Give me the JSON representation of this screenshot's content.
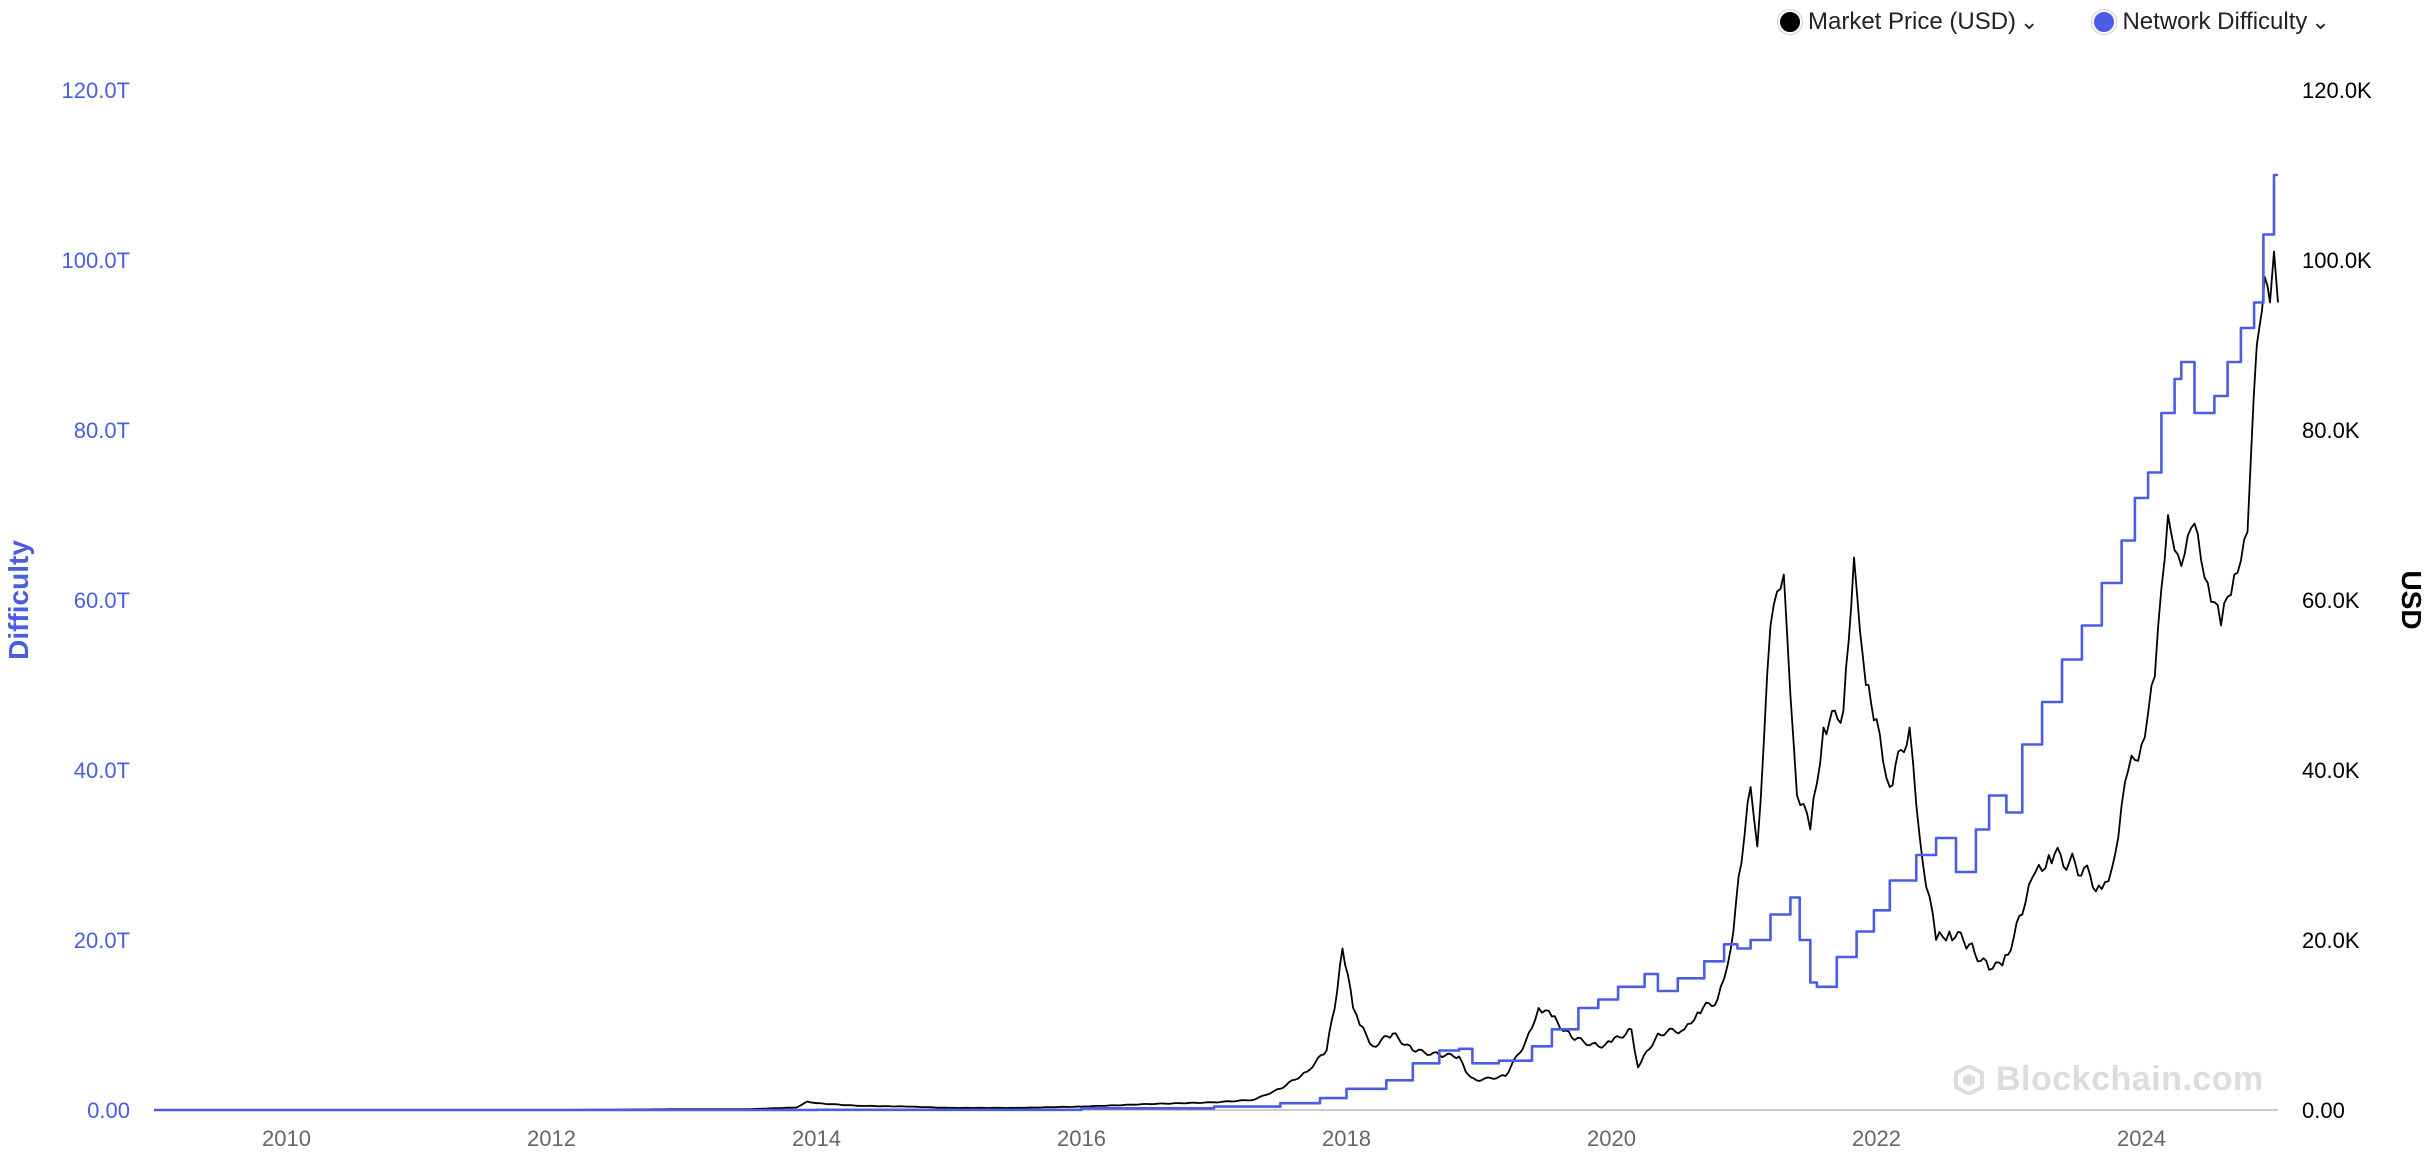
{
  "legend": {
    "items": [
      {
        "label": "Market Price (USD)",
        "color": "#000000",
        "icon": "chevron-down-icon"
      },
      {
        "label": "Network Difficulty",
        "color": "#4a5de3",
        "icon": "chevron-down-icon"
      }
    ]
  },
  "watermark": {
    "text": "Blockchain.com",
    "icon": "blockchain-logo-icon"
  },
  "chart_data": {
    "type": "line",
    "title": "",
    "xlabel": "",
    "x_ticks": [
      "2010",
      "2012",
      "2014",
      "2016",
      "2018",
      "2020",
      "2022",
      "2024"
    ],
    "xlim": [
      2009.0,
      2025.03
    ],
    "grid": false,
    "legend_position": "top-right",
    "y_left": {
      "label": "Difficulty",
      "color": "#4a5de3",
      "ylim": [
        0,
        120
      ],
      "unit_scale": "trillions",
      "tick_labels": [
        "0.00",
        "20.0T",
        "40.0T",
        "60.0T",
        "80.0T",
        "100.0T",
        "120.0T"
      ]
    },
    "y_right": {
      "label": "USD",
      "color": "#000000",
      "ylim": [
        0,
        120
      ],
      "unit_scale": "thousands",
      "tick_labels": [
        "0.00",
        "20.0K",
        "40.0K",
        "60.0K",
        "80.0K",
        "100.0K",
        "120.0K"
      ]
    },
    "series": [
      {
        "name": "Market Price (USD)",
        "axis": "right",
        "color": "#000000",
        "points": [
          [
            2009.0,
            0
          ],
          [
            2012.0,
            0.005
          ],
          [
            2013.0,
            0.1
          ],
          [
            2013.5,
            0.1
          ],
          [
            2013.85,
            0.3
          ],
          [
            2013.93,
            1.0
          ],
          [
            2014.0,
            0.8
          ],
          [
            2014.3,
            0.5
          ],
          [
            2014.7,
            0.4
          ],
          [
            2015.0,
            0.25
          ],
          [
            2015.5,
            0.25
          ],
          [
            2016.0,
            0.4
          ],
          [
            2016.5,
            0.7
          ],
          [
            2017.0,
            0.9
          ],
          [
            2017.3,
            1.2
          ],
          [
            2017.5,
            2.5
          ],
          [
            2017.7,
            4.5
          ],
          [
            2017.85,
            7.0
          ],
          [
            2017.93,
            14.0
          ],
          [
            2017.97,
            19.0
          ],
          [
            2018.05,
            12.0
          ],
          [
            2018.1,
            10.0
          ],
          [
            2018.2,
            7.5
          ],
          [
            2018.35,
            9.0
          ],
          [
            2018.5,
            7.0
          ],
          [
            2018.7,
            6.5
          ],
          [
            2018.85,
            6.3
          ],
          [
            2018.9,
            4.5
          ],
          [
            2018.98,
            3.5
          ],
          [
            2019.2,
            4.0
          ],
          [
            2019.35,
            8.0
          ],
          [
            2019.45,
            12.0
          ],
          [
            2019.55,
            11.0
          ],
          [
            2019.7,
            8.5
          ],
          [
            2019.9,
            7.5
          ],
          [
            2020.0,
            8.0
          ],
          [
            2020.15,
            9.5
          ],
          [
            2020.2,
            5.0
          ],
          [
            2020.35,
            9.0
          ],
          [
            2020.55,
            9.5
          ],
          [
            2020.65,
            11.5
          ],
          [
            2020.8,
            13.0
          ],
          [
            2020.9,
            19.0
          ],
          [
            2020.98,
            29.0
          ],
          [
            2021.05,
            38.0
          ],
          [
            2021.1,
            31.0
          ],
          [
            2021.2,
            57.0
          ],
          [
            2021.3,
            63.0
          ],
          [
            2021.4,
            37.0
          ],
          [
            2021.5,
            33.0
          ],
          [
            2021.6,
            45.0
          ],
          [
            2021.75,
            47.0
          ],
          [
            2021.83,
            65.0
          ],
          [
            2021.92,
            50.0
          ],
          [
            2022.0,
            46.0
          ],
          [
            2022.1,
            38.0
          ],
          [
            2022.25,
            45.0
          ],
          [
            2022.35,
            29.0
          ],
          [
            2022.45,
            20.0
          ],
          [
            2022.55,
            21.0
          ],
          [
            2022.7,
            19.5
          ],
          [
            2022.85,
            16.5
          ],
          [
            2022.95,
            17.0
          ],
          [
            2023.1,
            23.0
          ],
          [
            2023.2,
            28.0
          ],
          [
            2023.3,
            30.0
          ],
          [
            2023.5,
            29.0
          ],
          [
            2023.7,
            26.0
          ],
          [
            2023.8,
            30.0
          ],
          [
            2023.9,
            40.0
          ],
          [
            2024.0,
            43.0
          ],
          [
            2024.1,
            51.0
          ],
          [
            2024.2,
            70.0
          ],
          [
            2024.3,
            64.0
          ],
          [
            2024.4,
            69.0
          ],
          [
            2024.5,
            62.0
          ],
          [
            2024.6,
            57.0
          ],
          [
            2024.7,
            63.0
          ],
          [
            2024.8,
            68.0
          ],
          [
            2024.87,
            90.0
          ],
          [
            2024.93,
            98.0
          ],
          [
            2024.97,
            95.0
          ],
          [
            2025.0,
            101.0
          ],
          [
            2025.03,
            95.0
          ]
        ]
      },
      {
        "name": "Network Difficulty",
        "axis": "left",
        "color": "#4a5de3",
        "points": [
          [
            2009.0,
            0
          ],
          [
            2014.0,
            0.02
          ],
          [
            2016.0,
            0.2
          ],
          [
            2017.0,
            0.4
          ],
          [
            2017.5,
            0.8
          ],
          [
            2017.8,
            1.4
          ],
          [
            2018.0,
            2.5
          ],
          [
            2018.3,
            3.5
          ],
          [
            2018.5,
            5.5
          ],
          [
            2018.7,
            7.0
          ],
          [
            2018.85,
            7.2
          ],
          [
            2018.95,
            5.5
          ],
          [
            2019.15,
            5.8
          ],
          [
            2019.4,
            7.5
          ],
          [
            2019.55,
            9.5
          ],
          [
            2019.75,
            12.0
          ],
          [
            2019.9,
            13.0
          ],
          [
            2020.05,
            14.5
          ],
          [
            2020.25,
            16.0
          ],
          [
            2020.35,
            14.0
          ],
          [
            2020.5,
            15.5
          ],
          [
            2020.7,
            17.5
          ],
          [
            2020.85,
            19.5
          ],
          [
            2020.95,
            19.0
          ],
          [
            2021.05,
            20.0
          ],
          [
            2021.2,
            23.0
          ],
          [
            2021.35,
            25.0
          ],
          [
            2021.42,
            20.0
          ],
          [
            2021.5,
            15.0
          ],
          [
            2021.55,
            14.5
          ],
          [
            2021.7,
            18.0
          ],
          [
            2021.85,
            21.0
          ],
          [
            2021.98,
            23.5
          ],
          [
            2022.1,
            27.0
          ],
          [
            2022.3,
            30.0
          ],
          [
            2022.45,
            32.0
          ],
          [
            2022.6,
            28.0
          ],
          [
            2022.75,
            33.0
          ],
          [
            2022.85,
            37.0
          ],
          [
            2022.98,
            35.0
          ],
          [
            2023.1,
            43.0
          ],
          [
            2023.25,
            48.0
          ],
          [
            2023.4,
            53.0
          ],
          [
            2023.55,
            57.0
          ],
          [
            2023.7,
            62.0
          ],
          [
            2023.85,
            67.0
          ],
          [
            2023.95,
            72.0
          ],
          [
            2024.05,
            75.0
          ],
          [
            2024.15,
            82.0
          ],
          [
            2024.25,
            86.0
          ],
          [
            2024.3,
            88.0
          ],
          [
            2024.4,
            82.0
          ],
          [
            2024.55,
            84.0
          ],
          [
            2024.65,
            88.0
          ],
          [
            2024.75,
            92.0
          ],
          [
            2024.85,
            95.0
          ],
          [
            2024.92,
            103.0
          ],
          [
            2025.0,
            110.0
          ],
          [
            2025.03,
            110.0
          ]
        ]
      }
    ]
  }
}
